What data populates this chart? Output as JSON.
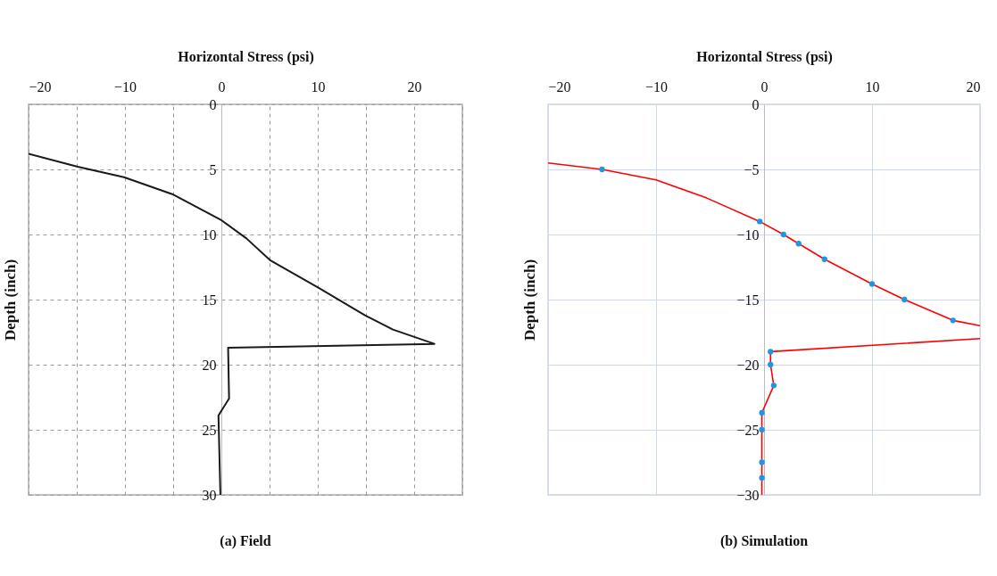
{
  "chart_data": [
    {
      "type": "line",
      "title": "(a) Field",
      "xlabel": "Horizontal Stress (psi)",
      "ylabel": "Depth (inch)",
      "xlim": [
        -20,
        25
      ],
      "xticks": [
        -20,
        {
          "value": -15,
          "label": null
        },
        -10,
        {
          "value": -5,
          "label": null
        },
        0,
        {
          "value": 5,
          "label": null
        },
        10,
        {
          "value": 15,
          "label": null
        },
        20,
        {
          "value": 25,
          "label": null
        }
      ],
      "ylim": [
        30,
        0
      ],
      "yticks": [
        0,
        5,
        10,
        15,
        20,
        25,
        30
      ],
      "grid": true,
      "series": [
        {
          "color": "#1a1a1a",
          "x": [
            -20,
            -14.9,
            -10.1,
            -5.1,
            0,
            2.6,
            5.1,
            10.1,
            14.9,
            17.8,
            22.1,
            0.7,
            0.8,
            -0.3,
            -0.1
          ],
          "values": [
            3.8,
            4.8,
            5.6,
            6.9,
            8.9,
            10.3,
            12,
            14.1,
            16.2,
            17.3,
            18.4,
            18.7,
            22.6,
            23.9,
            30
          ]
        }
      ]
    },
    {
      "type": "line",
      "title": "(b) Simulation",
      "xlabel": "Horizontal Stress (psi)",
      "ylabel": "Depth (inch)",
      "xlim": [
        -20,
        20
      ],
      "xticks": [
        -20,
        -10,
        0,
        10,
        20
      ],
      "ylim": [
        -30,
        0
      ],
      "yticks": [
        0,
        -5,
        -10,
        -15,
        -20,
        -25,
        -30
      ],
      "grid": true,
      "series": [
        {
          "color": "#ff0000",
          "x": [
            -20,
            -15,
            -10,
            -5.3,
            -0.4,
            1.8,
            3.2,
            5.6,
            10,
            13,
            17.5,
            20
          ],
          "values": [
            -4.5,
            -5,
            -5.8,
            -7.2,
            -9,
            -10,
            -10.7,
            -11.9,
            -13.8,
            -15,
            -16.6,
            -17
          ]
        },
        {
          "color": "#ff0000",
          "x": [
            20,
            0.6,
            0.6,
            0.9,
            -0.2,
            -0.2,
            -0.2,
            -0.2,
            -0.2
          ],
          "values": [
            -18,
            -19,
            -20,
            -21.6,
            -23.7,
            -25,
            -27.5,
            -28.7,
            -30
          ]
        },
        {
          "type": "scatter",
          "marker": "circle",
          "color": "#2196e0",
          "x": [
            -15,
            -0.4,
            1.8,
            3.2,
            5.6,
            10,
            13,
            17.5,
            0.6,
            0.6,
            0.9,
            -0.2,
            -0.2,
            -0.2,
            -0.2
          ],
          "values": [
            -5,
            -9,
            -10,
            -10.7,
            -11.9,
            -13.8,
            -15,
            -16.6,
            -19,
            -20,
            -21.6,
            -23.7,
            -25,
            -27.5,
            -28.7
          ]
        }
      ]
    }
  ]
}
